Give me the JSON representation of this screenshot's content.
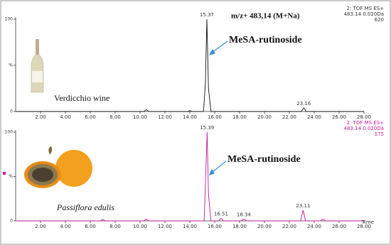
{
  "chart_data": [
    {
      "type": "line",
      "title": "m/z+ 483,14 (M+Na)",
      "compound": "MeSA-rutinoside",
      "sample": "Verdicchio wine",
      "header": [
        "2: TOF MS ES+",
        "483.14 0.020Da",
        "620"
      ],
      "series": [
        {
          "name": "Verdicchio wine",
          "color": "#111111",
          "x": [
            0,
            10.3,
            10.5,
            10.7,
            13.8,
            14,
            14.2,
            15.1,
            15.25,
            15.37,
            15.5,
            15.7,
            22.95,
            23.16,
            23.35,
            28
          ],
          "values": [
            0,
            0,
            2,
            0,
            0,
            1,
            0,
            0,
            30,
            100,
            25,
            0,
            0,
            4,
            0,
            0
          ]
        }
      ],
      "peak_labels": [
        15.37,
        23.16
      ],
      "xlim": [
        0,
        28
      ],
      "ylim": [
        0,
        100
      ],
      "xticks": [
        {
          "value": 2,
          "label": "2.00"
        },
        {
          "value": 4,
          "label": "4.00"
        },
        {
          "value": 6,
          "label": "6.00"
        },
        {
          "value": 8,
          "label": "8.00"
        },
        {
          "value": 10,
          "label": "10.00"
        },
        {
          "value": 12,
          "label": "12.00"
        },
        {
          "value": 14,
          "label": "14.00"
        },
        {
          "value": 16,
          "label": "16.00"
        },
        {
          "value": 18,
          "label": "18.00"
        },
        {
          "value": 20,
          "label": "20.00"
        },
        {
          "value": 22,
          "label": "22.00"
        },
        {
          "value": 24,
          "label": "24.00"
        },
        {
          "value": 26,
          "label": "26.00"
        },
        {
          "value": 28,
          "label": "28.00"
        }
      ],
      "yticks": [
        0,
        {
          "value": 50,
          "label": "%"
        },
        100
      ]
    },
    {
      "type": "line",
      "compound": "MeSA-rutinoside",
      "sample": "Passiflora edulis",
      "x_label": "Time",
      "header": [
        "2: TOF MS ES+",
        "483.14 0.020Da",
        "175"
      ],
      "series": [
        {
          "name": "Passiflora edulis",
          "color": "#c0189a",
          "x": [
            0,
            6.8,
            7,
            7.2,
            10.3,
            10.5,
            10.7,
            15.15,
            15.25,
            15.39,
            15.5,
            15.7,
            16.3,
            16.51,
            16.7,
            18.1,
            18.34,
            18.6,
            22.9,
            23.11,
            23.3,
            24.5,
            24.7,
            24.9,
            28
          ],
          "values": [
            0,
            0,
            1.5,
            0,
            0,
            2,
            0,
            0,
            40,
            100,
            30,
            0,
            0,
            3,
            0,
            0,
            2,
            0,
            0,
            12,
            0,
            0,
            2,
            0,
            0
          ]
        }
      ],
      "peak_labels": [
        15.39,
        16.51,
        18.34,
        23.11
      ],
      "xlim": [
        0,
        28
      ],
      "ylim": [
        0,
        100
      ],
      "xticks": [
        {
          "value": 2,
          "label": "2.00"
        },
        {
          "value": 4,
          "label": "4.00"
        },
        {
          "value": 6,
          "label": "6.00"
        },
        {
          "value": 8,
          "label": "8.00"
        },
        {
          "value": 10,
          "label": "10.00"
        },
        {
          "value": 12,
          "label": "12.00"
        },
        {
          "value": 14,
          "label": "14.00"
        },
        {
          "value": 16,
          "label": "16.00"
        },
        {
          "value": 18,
          "label": "18.00"
        },
        {
          "value": 20,
          "label": "20.00"
        },
        {
          "value": 22,
          "label": "22.00"
        },
        {
          "value": 24,
          "label": "24.00"
        },
        {
          "value": 26,
          "label": "26.00"
        },
        {
          "value": 28,
          "label": "28.00"
        }
      ],
      "yticks": [
        0,
        {
          "value": 50,
          "label": "%"
        },
        100
      ]
    }
  ]
}
